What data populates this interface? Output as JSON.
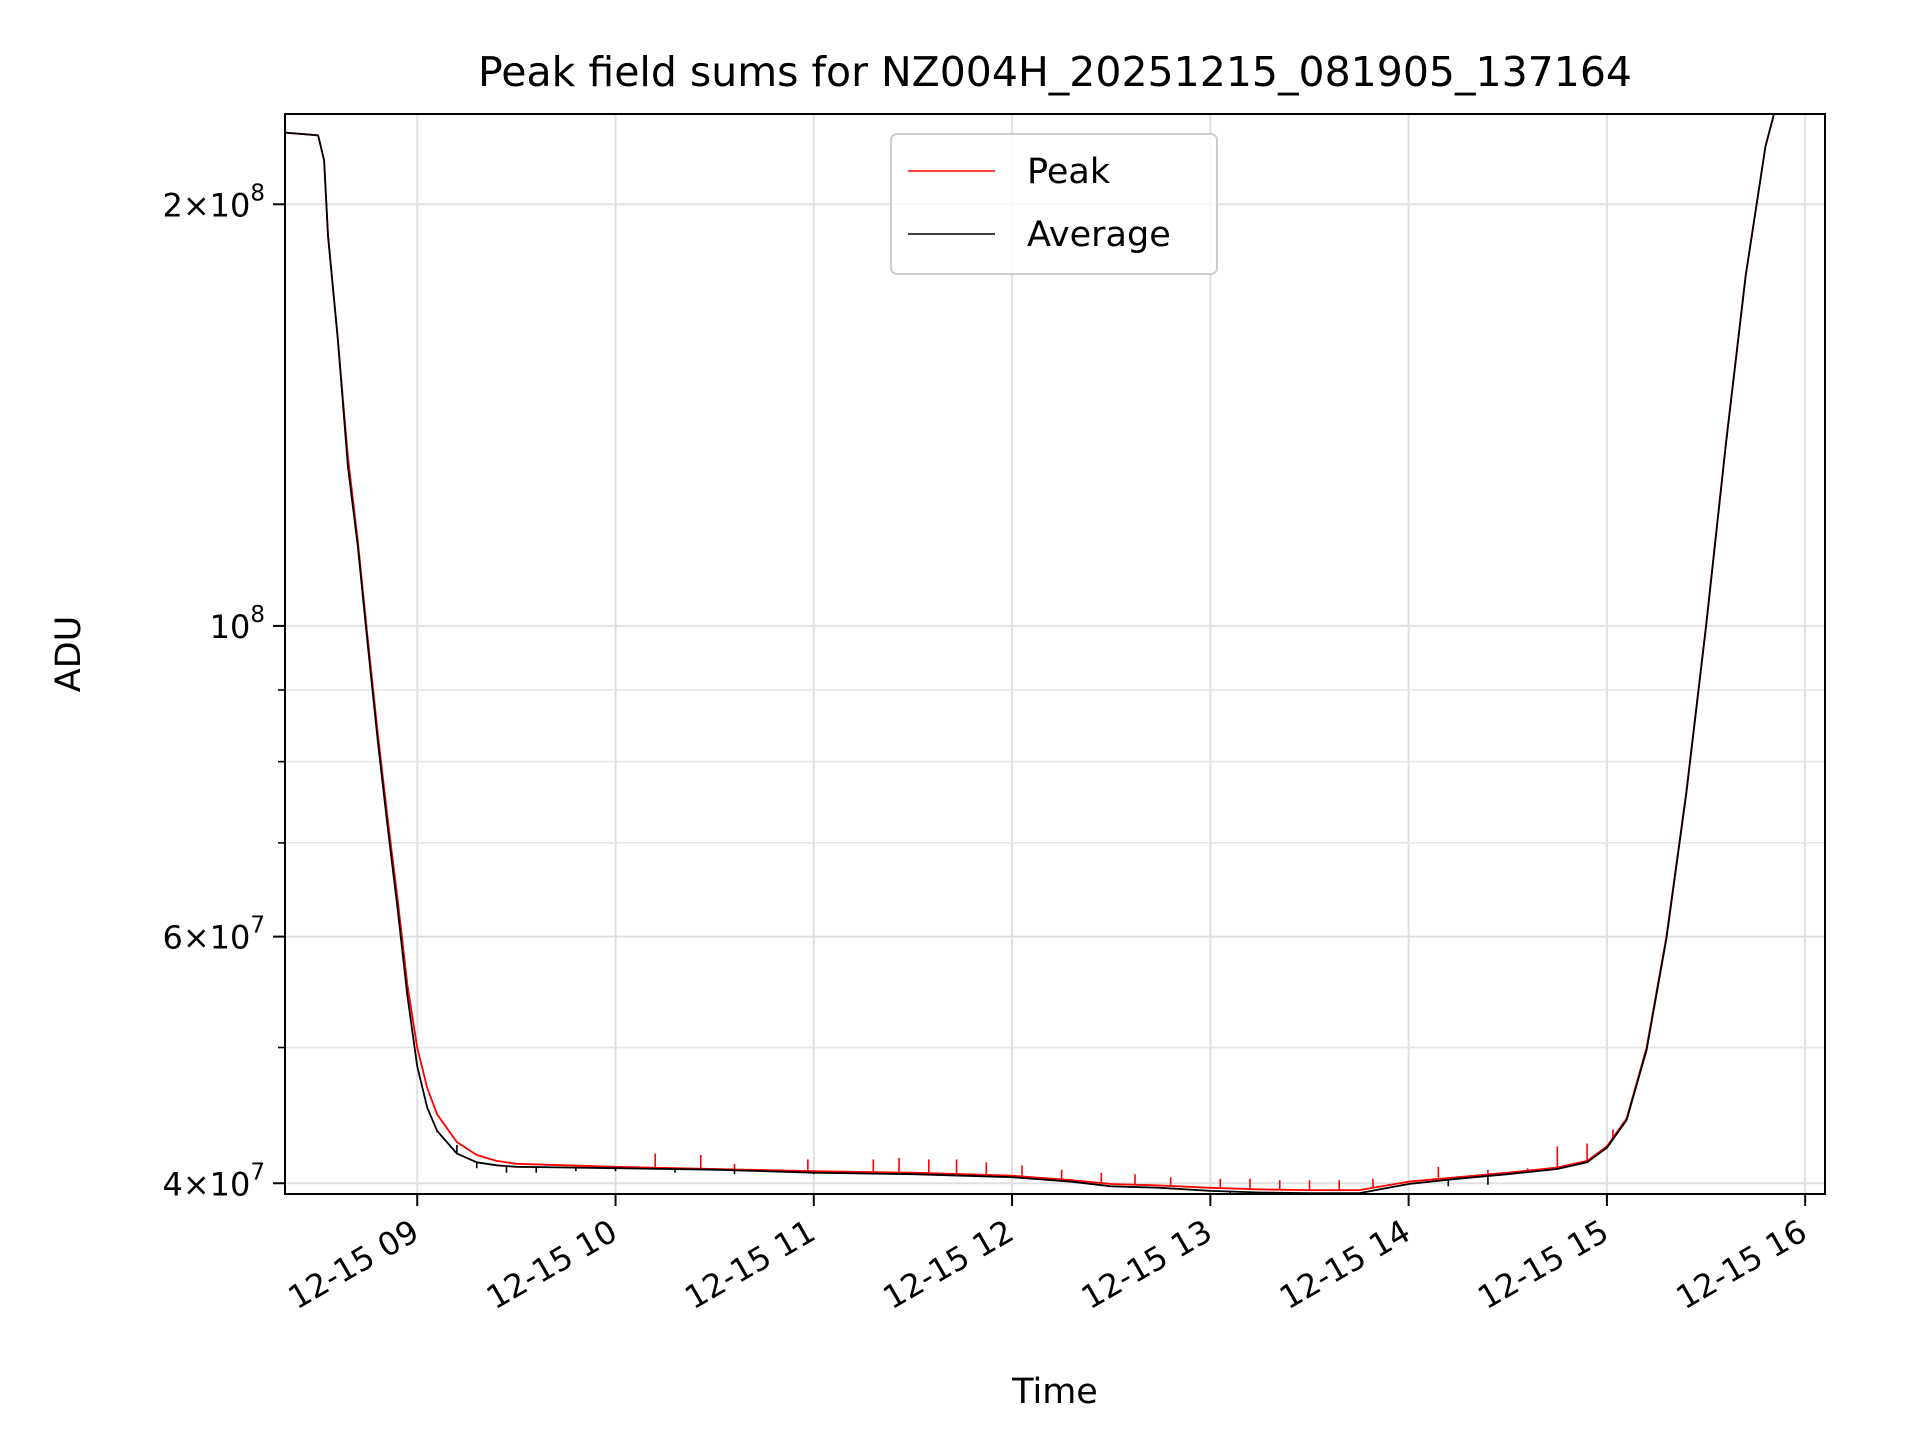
{
  "chart_data": {
    "type": "line",
    "title": "Peak field sums for NZ004H_20251215_081905_137164",
    "xlabel": "Time",
    "ylabel": "ADU",
    "yscale": "log",
    "grid": true,
    "legend_position": "top-center",
    "x_range_hours": [
      8.333,
      16.1
    ],
    "y_range": [
      39300000,
      232000000
    ],
    "x_ticks": [
      {
        "value": 9,
        "label": "12-15 09"
      },
      {
        "value": 10,
        "label": "12-15 10"
      },
      {
        "value": 11,
        "label": "12-15 11"
      },
      {
        "value": 12,
        "label": "12-15 12"
      },
      {
        "value": 13,
        "label": "12-15 13"
      },
      {
        "value": 14,
        "label": "12-15 14"
      },
      {
        "value": 15,
        "label": "12-15 15"
      },
      {
        "value": 16,
        "label": "12-15 16"
      }
    ],
    "y_major_ticks": [
      {
        "value": 40000000,
        "mantissa": "4",
        "exp": "7"
      },
      {
        "value": 60000000,
        "mantissa": "6",
        "exp": "7"
      },
      {
        "value": 100000000,
        "mantissa": "",
        "exp": "8"
      },
      {
        "value": 200000000,
        "mantissa": "2",
        "exp": "8"
      }
    ],
    "y_minor_ticks": [
      50000000,
      70000000,
      80000000,
      90000000
    ],
    "series": [
      {
        "name": "Peak",
        "color": "#ff0000",
        "x_hours": [
          8.333,
          8.5,
          8.53,
          8.55,
          8.6,
          8.65,
          8.7,
          8.75,
          8.8,
          8.85,
          8.9,
          8.95,
          9.0,
          9.05,
          9.1,
          9.2,
          9.3,
          9.4,
          9.5,
          9.75,
          10.0,
          10.5,
          11.0,
          11.5,
          12.0,
          12.3,
          12.5,
          12.75,
          13.0,
          13.25,
          13.5,
          13.75,
          14.0,
          14.25,
          14.5,
          14.75,
          14.9,
          15.0,
          15.1,
          15.2,
          15.3,
          15.4,
          15.5,
          15.6,
          15.7,
          15.8,
          15.85
        ],
        "values": [
          225000000,
          224000000,
          215000000,
          190000000,
          160000000,
          132000000,
          115000000,
          98000000,
          84000000,
          73000000,
          64000000,
          55500000,
          50000000,
          46800000,
          44800000,
          42800000,
          41900000,
          41500000,
          41300000,
          41200000,
          41100000,
          40950000,
          40800000,
          40700000,
          40500000,
          40200000,
          39950000,
          39850000,
          39700000,
          39600000,
          39550000,
          39550000,
          40100000,
          40400000,
          40700000,
          41050000,
          41500000,
          42500000,
          44500000,
          50000000,
          60000000,
          76000000,
          100000000,
          135000000,
          178000000,
          220000000,
          234000000
        ],
        "spikes": [
          {
            "x": 10.2,
            "value": 42000000
          },
          {
            "x": 10.43,
            "value": 41900000
          },
          {
            "x": 10.6,
            "value": 41300000
          },
          {
            "x": 10.97,
            "value": 41600000
          },
          {
            "x": 11.3,
            "value": 41600000
          },
          {
            "x": 11.43,
            "value": 41700000
          },
          {
            "x": 11.58,
            "value": 41600000
          },
          {
            "x": 11.72,
            "value": 41600000
          },
          {
            "x": 11.87,
            "value": 41400000
          },
          {
            "x": 12.05,
            "value": 41200000
          },
          {
            "x": 12.25,
            "value": 40900000
          },
          {
            "x": 12.45,
            "value": 40700000
          },
          {
            "x": 12.62,
            "value": 40600000
          },
          {
            "x": 12.8,
            "value": 40400000
          },
          {
            "x": 13.05,
            "value": 40300000
          },
          {
            "x": 13.2,
            "value": 40300000
          },
          {
            "x": 13.35,
            "value": 40200000
          },
          {
            "x": 13.5,
            "value": 40200000
          },
          {
            "x": 13.65,
            "value": 40200000
          },
          {
            "x": 13.82,
            "value": 40300000
          },
          {
            "x": 14.15,
            "value": 41100000
          },
          {
            "x": 14.4,
            "value": 40900000
          },
          {
            "x": 14.6,
            "value": 41000000
          },
          {
            "x": 14.75,
            "value": 42500000
          },
          {
            "x": 14.9,
            "value": 42700000
          },
          {
            "x": 15.03,
            "value": 43700000
          }
        ]
      },
      {
        "name": "Average",
        "color": "#000000",
        "x_hours": [
          8.333,
          8.5,
          8.53,
          8.55,
          8.6,
          8.65,
          8.7,
          8.75,
          8.8,
          8.85,
          8.9,
          8.95,
          9.0,
          9.05,
          9.1,
          9.2,
          9.3,
          9.4,
          9.5,
          9.75,
          10.0,
          10.5,
          11.0,
          11.5,
          12.0,
          12.3,
          12.5,
          12.75,
          13.0,
          13.25,
          13.5,
          13.75,
          14.0,
          14.25,
          14.5,
          14.75,
          14.9,
          15.0,
          15.1,
          15.2,
          15.3,
          15.4,
          15.5,
          15.6,
          15.7,
          15.8,
          15.85
        ],
        "values": [
          225000000,
          224000000,
          215000000,
          190000000,
          160000000,
          130000000,
          114000000,
          97000000,
          83000000,
          72000000,
          63000000,
          54500000,
          48500000,
          45300000,
          43600000,
          42000000,
          41400000,
          41200000,
          41100000,
          41050000,
          41000000,
          40900000,
          40700000,
          40600000,
          40400000,
          40100000,
          39800000,
          39700000,
          39500000,
          39400000,
          39350000,
          39350000,
          39950000,
          40300000,
          40600000,
          40950000,
          41400000,
          42400000,
          44400000,
          49800000,
          59800000,
          75800000,
          99800000,
          134800000,
          177800000,
          220000000,
          234000000
        ],
        "dips": [
          {
            "x": 9.1,
            "value": 43500000
          },
          {
            "x": 9.2,
            "value": 42600000
          },
          {
            "x": 9.3,
            "value": 41000000
          },
          {
            "x": 9.45,
            "value": 40700000
          },
          {
            "x": 9.6,
            "value": 40700000
          },
          {
            "x": 9.8,
            "value": 40800000
          },
          {
            "x": 10.0,
            "value": 40800000
          },
          {
            "x": 10.3,
            "value": 40700000
          },
          {
            "x": 10.6,
            "value": 40600000
          },
          {
            "x": 11.0,
            "value": 40600000
          },
          {
            "x": 12.4,
            "value": 39900000
          },
          {
            "x": 12.8,
            "value": 39600000
          },
          {
            "x": 13.1,
            "value": 39300000
          },
          {
            "x": 13.4,
            "value": 39300000
          },
          {
            "x": 13.7,
            "value": 39300000
          },
          {
            "x": 14.2,
            "value": 39800000
          },
          {
            "x": 14.4,
            "value": 39900000
          }
        ]
      }
    ]
  }
}
